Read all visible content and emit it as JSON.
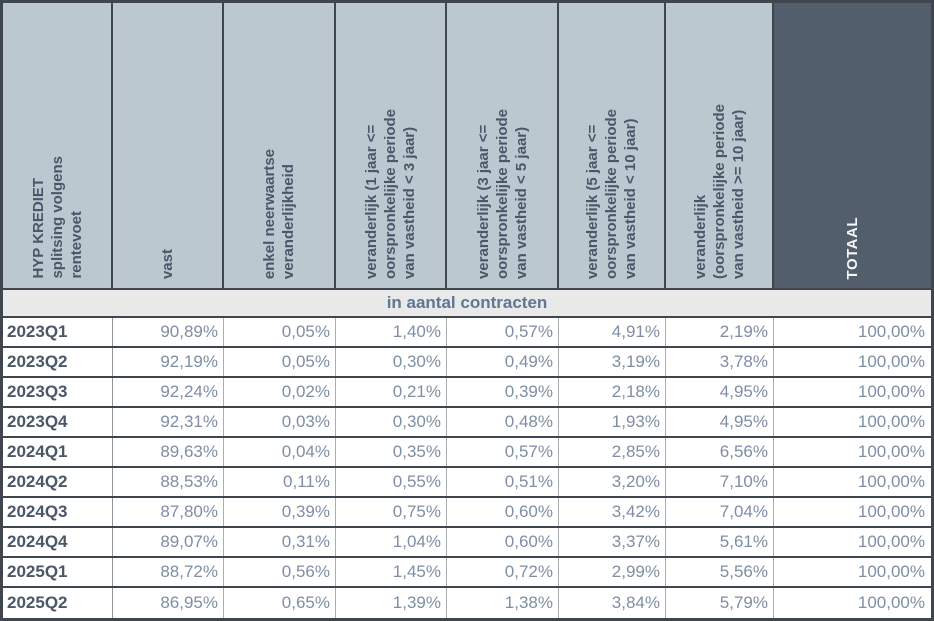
{
  "chart_data": {
    "type": "table",
    "title": "HYP KREDIET splitsing volgens rentevoet",
    "corner_header": "HYP KREDIET\nsplitsing volgens\nrentevoet",
    "column_headers": [
      "vast",
      "enkel neerwaartse\nveranderlijkheid",
      "veranderlijk (1 jaar <=\noorspronkelijke periode\nvan vastheid < 3 jaar)",
      "veranderlijk (3 jaar <=\noorspronkelijke periode\nvan vastheid < 5 jaar)",
      "veranderlijk (5 jaar <=\noorspronkelijke periode\nvan vastheid < 10 jaar)",
      "veranderlijk\n(oorspronkelijke periode\nvan vastheid >= 10 jaar)",
      "TOTAAL"
    ],
    "section_header": "in aantal contracten",
    "rows": [
      {
        "label": "2023Q1",
        "values": [
          "90,89%",
          "0,05%",
          "1,40%",
          "0,57%",
          "4,91%",
          "2,19%",
          "100,00%"
        ]
      },
      {
        "label": "2023Q2",
        "values": [
          "92,19%",
          "0,05%",
          "0,30%",
          "0,49%",
          "3,19%",
          "3,78%",
          "100,00%"
        ]
      },
      {
        "label": "2023Q3",
        "values": [
          "92,24%",
          "0,02%",
          "0,21%",
          "0,39%",
          "2,18%",
          "4,95%",
          "100,00%"
        ]
      },
      {
        "label": "2023Q4",
        "values": [
          "92,31%",
          "0,03%",
          "0,30%",
          "0,48%",
          "1,93%",
          "4,95%",
          "100,00%"
        ]
      },
      {
        "label": "2024Q1",
        "values": [
          "89,63%",
          "0,04%",
          "0,35%",
          "0,57%",
          "2,85%",
          "6,56%",
          "100,00%"
        ]
      },
      {
        "label": "2024Q2",
        "values": [
          "88,53%",
          "0,11%",
          "0,55%",
          "0,51%",
          "3,20%",
          "7,10%",
          "100,00%"
        ]
      },
      {
        "label": "2024Q3",
        "values": [
          "87,80%",
          "0,39%",
          "0,75%",
          "0,60%",
          "3,42%",
          "7,04%",
          "100,00%"
        ]
      },
      {
        "label": "2024Q4",
        "values": [
          "89,07%",
          "0,31%",
          "1,04%",
          "0,60%",
          "3,37%",
          "5,61%",
          "100,00%"
        ]
      },
      {
        "label": "2025Q1",
        "values": [
          "88,72%",
          "0,56%",
          "1,45%",
          "0,72%",
          "2,99%",
          "5,56%",
          "100,00%"
        ]
      },
      {
        "label": "2025Q2",
        "values": [
          "86,95%",
          "0,65%",
          "1,39%",
          "1,38%",
          "3,84%",
          "5,79%",
          "100,00%"
        ]
      }
    ]
  },
  "colors": {
    "header_bg": "#bcc8d0",
    "totaal_bg": "#535e6c",
    "header_text": "#4a5769",
    "totaal_text": "#f4f6f7",
    "section_bg": "#e9e9e9",
    "section_text": "#5f7696",
    "row_label_text": "#4a5769",
    "value_text": "#7e8ea4",
    "border_dark": "#40464e",
    "grid_line": "#a9aeb3"
  }
}
